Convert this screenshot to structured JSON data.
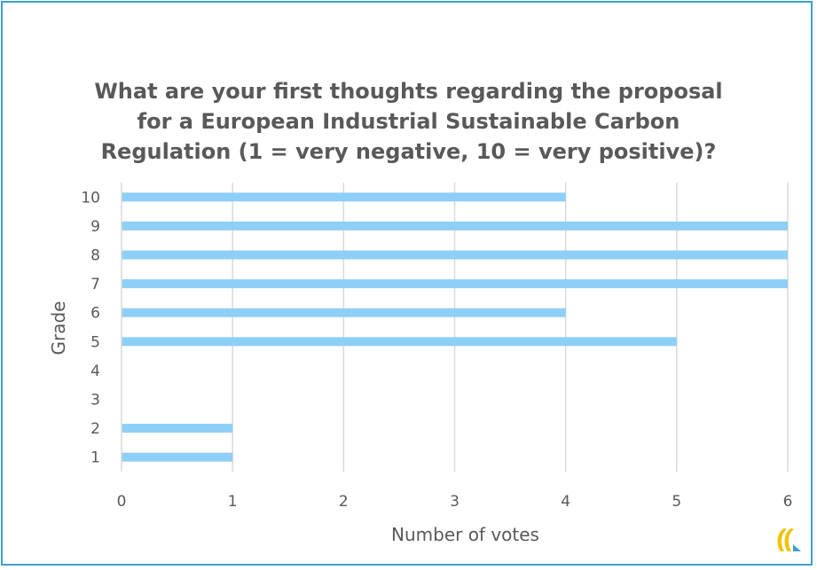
{
  "chart_data": {
    "type": "bar",
    "orientation": "horizontal",
    "title_lines": [
      "What are your first thoughts regarding the proposal",
      "for a European Industrial Sustainable Carbon",
      "Regulation (1 = very negative, 10 = very positive)?"
    ],
    "categories": [
      "1",
      "2",
      "3",
      "4",
      "5",
      "6",
      "7",
      "8",
      "9",
      "10"
    ],
    "values": [
      1,
      1,
      0,
      0,
      5,
      4,
      6,
      6,
      6,
      4
    ],
    "xlabel": "Number of votes",
    "ylabel": "Grade",
    "xlim": [
      0,
      6
    ],
    "xticks": [
      "0",
      "1",
      "2",
      "3",
      "4",
      "5",
      "6"
    ],
    "grid": "vertical",
    "bar_color": "#8dcff6",
    "grid_color": "#d9d9d9",
    "text_color": "#595959"
  },
  "frame_color": "#3aa2cf",
  "logo": {
    "icon": "ecr-logo-icon",
    "colors": [
      "#f2c200",
      "#3aa2cf"
    ]
  }
}
